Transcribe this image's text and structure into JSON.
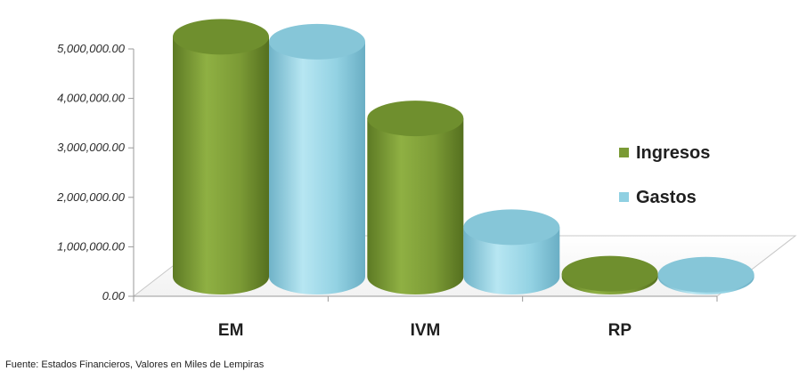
{
  "chart_data": {
    "type": "bar",
    "categories": [
      "EM",
      "IVM",
      "RP"
    ],
    "series": [
      {
        "name": "Ingresos",
        "values": [
          4850000,
          3200000,
          60000
        ]
      },
      {
        "name": "Gastos",
        "values": [
          4750000,
          1000000,
          40000
        ]
      }
    ],
    "yticks": [
      "0.00",
      "1,000,000.00",
      "2,000,000.00",
      "3,000,000.00",
      "4,000,000.00",
      "5,000,000.00"
    ],
    "ylim": [
      0,
      5000000
    ],
    "legend_position": "right",
    "grid": false,
    "style": "3d-cylinder",
    "colors": {
      "Ingresos": "#7a9a35",
      "Gastos": "#8fd0e2"
    }
  },
  "source_note": "Fuente: Estados Financieros, Valores en Miles de Lempiras"
}
